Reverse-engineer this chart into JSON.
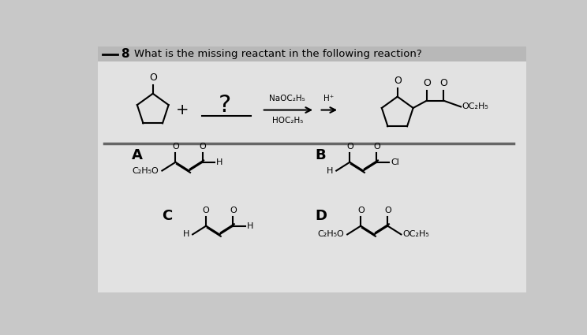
{
  "bg_color": "#c8c8c8",
  "panel_color": "#e2e2e2",
  "title_text": "What is the missing reactant in the following reaction?",
  "question_num": "8",
  "label_A": "A",
  "label_B": "B",
  "label_C": "C",
  "label_D": "D"
}
